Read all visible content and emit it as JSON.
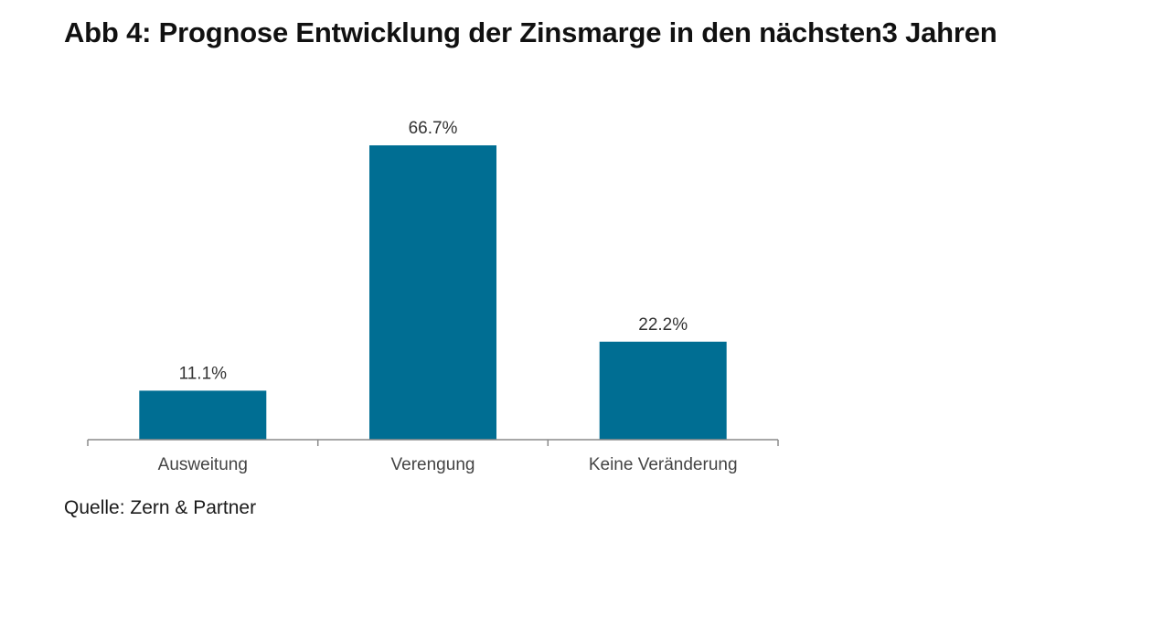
{
  "chart_data": {
    "type": "bar",
    "title": "Abb 4: Prognose Entwicklung der Zinsmarge in den nächsten3 Jahren",
    "categories": [
      "Ausweitung",
      "Verengung",
      "Keine Veränderung"
    ],
    "values": [
      11.1,
      66.7,
      22.2
    ],
    "data_labels": [
      "11.1%",
      "66.7%",
      "22.2%"
    ],
    "xlabel": "",
    "ylabel": "",
    "ylim": [
      0,
      70
    ],
    "grid": false,
    "legend": "none",
    "bar_color": "#006e93",
    "source": "Quelle: Zern & Partner"
  }
}
